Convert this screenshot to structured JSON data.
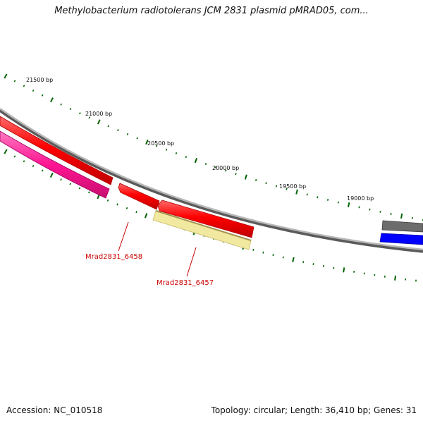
{
  "title": "Methylobacterium radiotolerans JCM 2831 plasmid pMRAD05, com...",
  "footer": {
    "accession": "Accession: NC_010518",
    "summary": "Topology: circular; Length: 36,410 bp; Genes: 31"
  },
  "tick_labels": [
    "21500 bp",
    "21000 bp",
    "20500 bp",
    "20000 bp",
    "19500 bp",
    "19000 bp"
  ],
  "gene_labels": [
    "Mrad2831_6458",
    "Mrad2831_6457"
  ],
  "colors": {
    "backbone": "#8c8c8c",
    "gene_red": "#ff0000",
    "gene_pink": "#ff1493",
    "gene_khaki": "#f0e68c",
    "gene_blue": "#0000ff",
    "gene_gray": "#666666",
    "tick_green": "#006400",
    "label_red": "#cc0000"
  }
}
